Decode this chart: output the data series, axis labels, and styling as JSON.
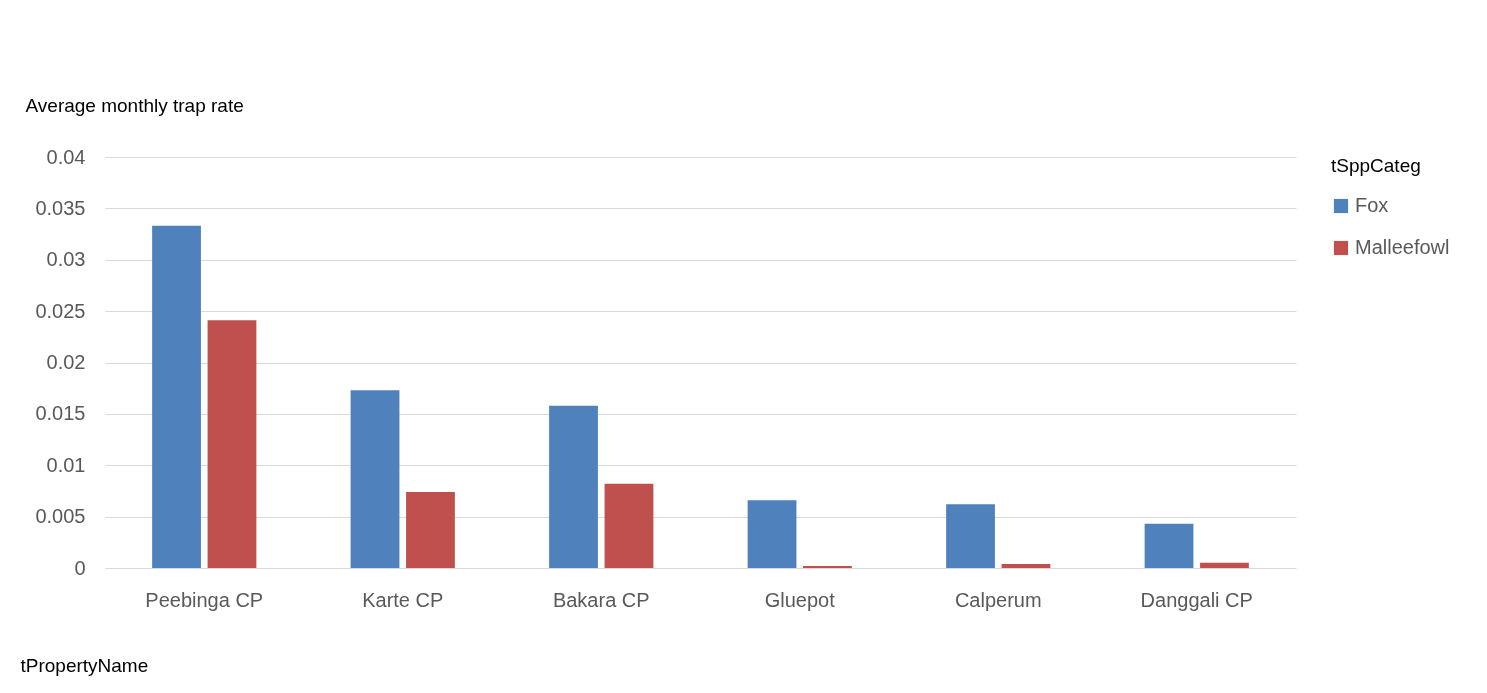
{
  "chart_data": {
    "type": "bar",
    "ylabel": "Average monthly trap rate",
    "xlabel": "tPropertyName",
    "legend_title": "tSppCateg",
    "categories": [
      "Peebinga CP",
      "Karte CP",
      "Bakara CP",
      "Gluepot",
      "Calperum",
      "Danggali CP"
    ],
    "series": [
      {
        "name": "Fox",
        "color": "#4f81bd",
        "values": [
          0.0333,
          0.0173,
          0.0158,
          0.0066,
          0.0062,
          0.0043
        ]
      },
      {
        "name": "Malleefowl",
        "color": "#c0504d",
        "values": [
          0.0241,
          0.0074,
          0.0082,
          0.0002,
          0.0004,
          0.0005
        ]
      }
    ],
    "ylim": [
      0,
      0.04
    ],
    "yticks": [
      0,
      0.005,
      0.01,
      0.015,
      0.02,
      0.025,
      0.03,
      0.035,
      0.04
    ],
    "grid": "y",
    "legend": "right"
  }
}
